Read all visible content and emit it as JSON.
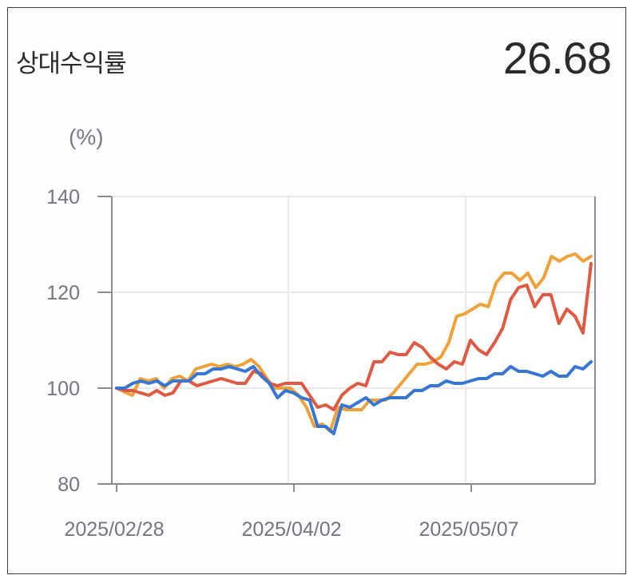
{
  "header": {
    "title": "상대수익률",
    "value": "26.68"
  },
  "chart_data": {
    "type": "line",
    "ylabel": "(%)",
    "ylim": [
      80,
      140
    ],
    "yticks": [
      80,
      100,
      120,
      140
    ],
    "x_tick_labels": [
      "2025/02/28",
      "2025/04/02",
      "2025/05/07"
    ],
    "grid": true,
    "series": [
      {
        "color": "#f0a23a",
        "values": [
          100,
          99.2,
          98.5,
          102,
          101.5,
          102,
          100,
          102,
          102.5,
          101.5,
          104,
          104.5,
          105,
          104.5,
          105,
          104.5,
          105,
          106,
          104.5,
          102,
          100,
          100,
          100,
          98.5,
          96,
          92,
          92.5,
          91,
          96,
          95.5,
          95.5,
          95.5,
          97.5,
          97.5,
          97.5,
          99,
          101,
          103,
          105,
          105,
          105.5,
          106.5,
          109.5,
          115,
          115.5,
          116.5,
          117.5,
          117,
          122,
          124,
          124,
          122.5,
          124,
          121,
          123,
          127.5,
          126.5,
          127.5,
          128,
          126.5,
          127.5
        ]
      },
      {
        "color": "#e05a43",
        "values": [
          100,
          99.5,
          99.5,
          99,
          98.5,
          99.5,
          98.5,
          99,
          101.5,
          101.5,
          100.5,
          101,
          101.5,
          102,
          101.5,
          101,
          101,
          103.5,
          103,
          101,
          100.5,
          101,
          101,
          101,
          98.5,
          96,
          96.5,
          95.5,
          98.5,
          100,
          101,
          100.5,
          105.5,
          105.5,
          107.5,
          107,
          107,
          109.5,
          108.5,
          106.5,
          105,
          104,
          105.5,
          105,
          110,
          108,
          107,
          109.5,
          112.5,
          118.5,
          121,
          121.5,
          117,
          119.5,
          119.5,
          113.5,
          116.5,
          115,
          111.5,
          126
        ]
      },
      {
        "color": "#3776d3",
        "values": [
          100,
          100,
          101,
          101.5,
          101,
          101.5,
          100.5,
          101.5,
          101.5,
          101.5,
          103,
          103,
          104,
          104,
          104.5,
          104,
          103.5,
          104.5,
          102.5,
          101,
          98,
          99.5,
          99,
          98,
          97.5,
          92,
          92,
          90.5,
          96.5,
          96,
          97,
          98,
          96.5,
          97.5,
          98,
          98,
          98,
          99.5,
          99.5,
          100.5,
          100.5,
          101.5,
          101,
          101,
          101.5,
          102,
          102,
          103,
          103,
          104.5,
          103.5,
          103.5,
          103,
          102.5,
          103.5,
          102.5,
          102.5,
          104.5,
          104,
          105.5
        ]
      }
    ]
  }
}
